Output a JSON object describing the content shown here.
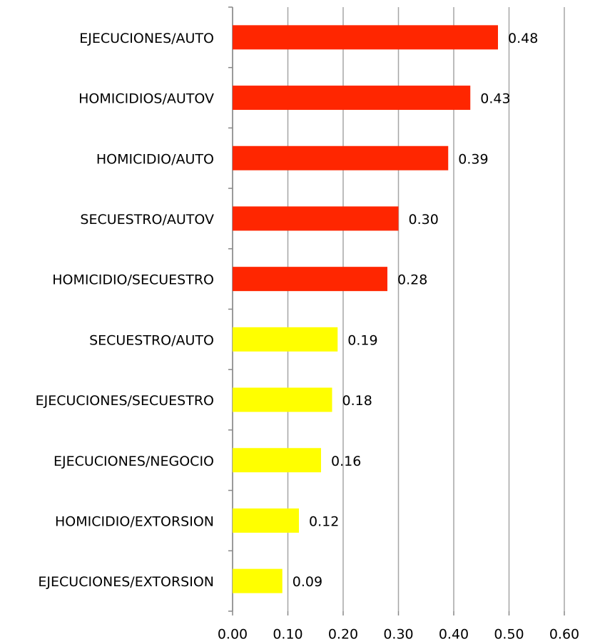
{
  "chart_data": {
    "type": "barh",
    "categories": [
      "EJECUCIONES/AUTO",
      "HOMICIDIOS/AUTOV",
      "HOMICIDIO/AUTO",
      "SECUESTRO/AUTOV",
      "HOMICIDIO/SECUESTRO",
      "SECUESTRO/AUTO",
      "EJECUCIONES/SECUESTRO",
      "EJECUCIONES/NEGOCIO",
      "HOMICIDIO/EXTORSION",
      "EJECUCIONES/EXTORSION"
    ],
    "values": [
      0.48,
      0.43,
      0.39,
      0.3,
      0.28,
      0.19,
      0.18,
      0.16,
      0.12,
      0.09
    ],
    "value_labels": [
      "0.48",
      "0.43",
      "0.39",
      "0.30",
      "0.28",
      "0.19",
      "0.18",
      "0.16",
      "0.12",
      "0.09"
    ],
    "colors": [
      "#ff2600",
      "#ff2600",
      "#ff2600",
      "#ff2600",
      "#ff2600",
      "#ffff00",
      "#ffff00",
      "#ffff00",
      "#ffff00",
      "#ffff00"
    ],
    "xlim": [
      0,
      0.6
    ],
    "xticks": [
      {
        "value": 0,
        "label": "0.00"
      },
      {
        "value": 0.1,
        "label": "0.10"
      },
      {
        "value": 0.2,
        "label": "0.20"
      },
      {
        "value": 0.3,
        "label": "0.30"
      },
      {
        "value": 0.4,
        "label": "0.40"
      },
      {
        "value": 0.5,
        "label": "0.50"
      },
      {
        "value": 0.6,
        "label": "0.60"
      }
    ],
    "grid": true
  }
}
